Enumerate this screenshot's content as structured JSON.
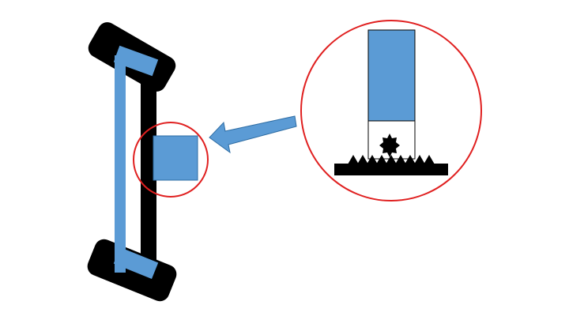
{
  "diagram": {
    "parts": [
      "frame-top-pad",
      "frame-bottom-pad",
      "frame-rail",
      "blue-bracket",
      "attached-block",
      "focus-circle",
      "pointer-arrow",
      "zoom-circle",
      "zoom-block",
      "gear-socket",
      "gear-icon",
      "toothed-rack"
    ],
    "colors": {
      "background": "#ffffff",
      "frame": "#000000",
      "blue": "#5b9bd5",
      "blue_stroke": "#2e6da4",
      "circle": "#e02020"
    }
  }
}
